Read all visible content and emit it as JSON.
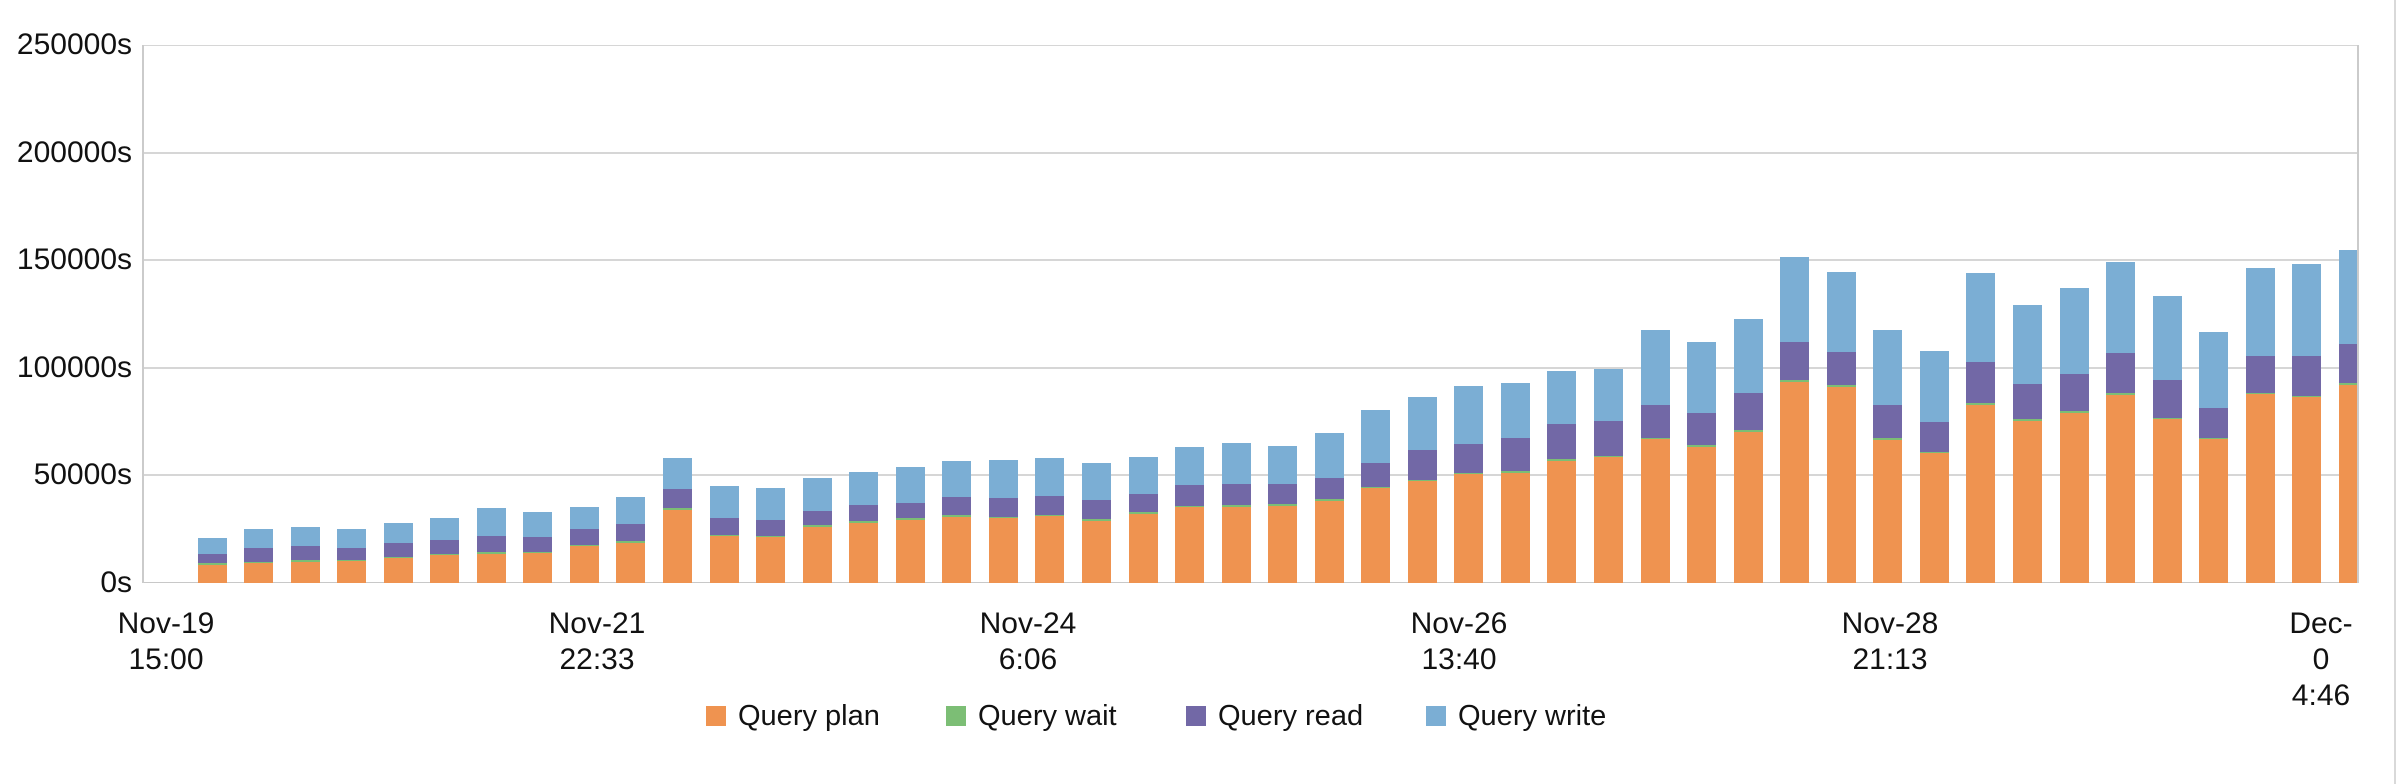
{
  "chart_data": {
    "type": "bar",
    "stacked": true,
    "grid": true,
    "legend_position": "bottom",
    "y_unit": "s",
    "ylim": [
      0,
      250000
    ],
    "y_ticks": [
      "250000s",
      "200000s",
      "150000s",
      "100000s",
      "50000s",
      "0s"
    ],
    "x_tick_labels": [
      {
        "date": "Nov-19",
        "time": "15:00"
      },
      {
        "date": "Nov-21",
        "time": "22:33"
      },
      {
        "date": "Nov-24",
        "time": "6:06"
      },
      {
        "date": "Nov-26",
        "time": "13:40"
      },
      {
        "date": "Nov-28",
        "time": "21:13"
      },
      {
        "date": "Dec-0",
        "time": "4:46"
      }
    ],
    "colors": {
      "plan": "#EF9350",
      "wait": "#7CBE75",
      "read": "#7268A6",
      "write": "#7BAED4",
      "gridline": "#d6d6d6",
      "axis_border": "#cbcbcb",
      "text": "#111111"
    },
    "series": [
      {
        "name": "Query plan",
        "color": "#EF9350",
        "values": [
          8400,
          9300,
          9800,
          10000,
          11600,
          13000,
          13500,
          14000,
          17200,
          18600,
          34000,
          21800,
          21200,
          26200,
          28000,
          29300,
          30800,
          30100,
          31100,
          29000,
          32100,
          35100,
          35500,
          35900,
          38300,
          44100,
          47300,
          50500,
          51300,
          56800,
          58400,
          66700,
          63400,
          70200,
          93600,
          91100,
          66600,
          60400,
          82900,
          75400,
          79200,
          87600,
          76200,
          66900,
          87800,
          86400,
          92000
        ]
      },
      {
        "name": "Query wait",
        "color": "#7CBE75",
        "values": [
          700,
          700,
          700,
          600,
          600,
          700,
          700,
          600,
          700,
          700,
          800,
          700,
          700,
          700,
          700,
          700,
          700,
          700,
          700,
          700,
          700,
          700,
          700,
          700,
          700,
          700,
          700,
          700,
          700,
          700,
          700,
          700,
          700,
          700,
          700,
          700,
          700,
          700,
          700,
          700,
          700,
          700,
          700,
          700,
          700,
          700,
          800
        ]
      },
      {
        "name": "Query read",
        "color": "#7268A6",
        "values": [
          4400,
          6400,
          6500,
          5900,
          6200,
          6500,
          7700,
          6900,
          7200,
          8200,
          9000,
          7900,
          7400,
          6800,
          7600,
          7400,
          8400,
          8600,
          8600,
          8800,
          8500,
          9600,
          9700,
          9200,
          9600,
          11200,
          13600,
          13600,
          15500,
          16400,
          16100,
          15500,
          15100,
          17200,
          17500,
          15600,
          15600,
          13900,
          19100,
          16300,
          17200,
          18500,
          17500,
          13700,
          17000,
          18400,
          18300
        ]
      },
      {
        "name": "Query write",
        "color": "#7BAED4",
        "values": [
          7400,
          8700,
          9000,
          8600,
          9500,
          10000,
          13000,
          11300,
          10400,
          12500,
          14300,
          14700,
          15000,
          15300,
          15500,
          16300,
          16900,
          17700,
          17700,
          17300,
          17300,
          18000,
          19000,
          17700,
          20900,
          24200,
          25000,
          26900,
          25300,
          24800,
          24300,
          34700,
          32900,
          34600,
          39500,
          37100,
          34800,
          32700,
          41400,
          36700,
          40000,
          42300,
          39000,
          35300,
          40900,
          42700,
          43700
        ]
      }
    ],
    "last_bar_clipped_at_right_border": true
  }
}
